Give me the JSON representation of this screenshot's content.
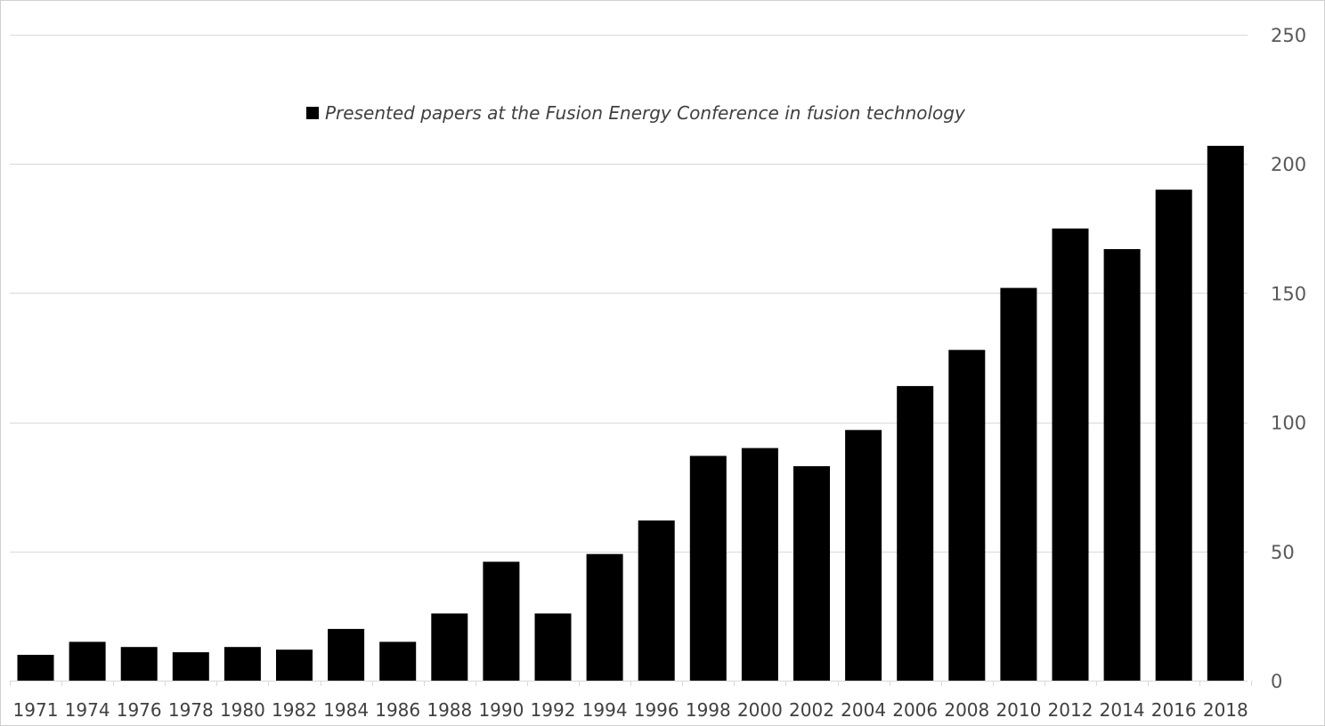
{
  "chart_data": {
    "type": "bar",
    "categories": [
      "1971",
      "1974",
      "1976",
      "1978",
      "1980",
      "1982",
      "1984",
      "1986",
      "1988",
      "1990",
      "1992",
      "1994",
      "1996",
      "1998",
      "2000",
      "2002",
      "2004",
      "2006",
      "2008",
      "2010",
      "2012",
      "2014",
      "2016",
      "2018"
    ],
    "series": [
      {
        "name": "Presented papers at the Fusion Energy Conference in fusion technology",
        "values": [
          10,
          15,
          13,
          11,
          13,
          12,
          20,
          15,
          26,
          46,
          26,
          49,
          62,
          87,
          90,
          83,
          97,
          114,
          128,
          152,
          175,
          167,
          190,
          207
        ],
        "color": "#000000"
      }
    ],
    "title": "",
    "xlabel": "",
    "ylabel": "",
    "ylim": [
      0,
      250
    ],
    "yticks": [
      0,
      50,
      100,
      150,
      200,
      250
    ],
    "y_axis_side": "right",
    "grid": true,
    "legend_position": "top-center"
  }
}
